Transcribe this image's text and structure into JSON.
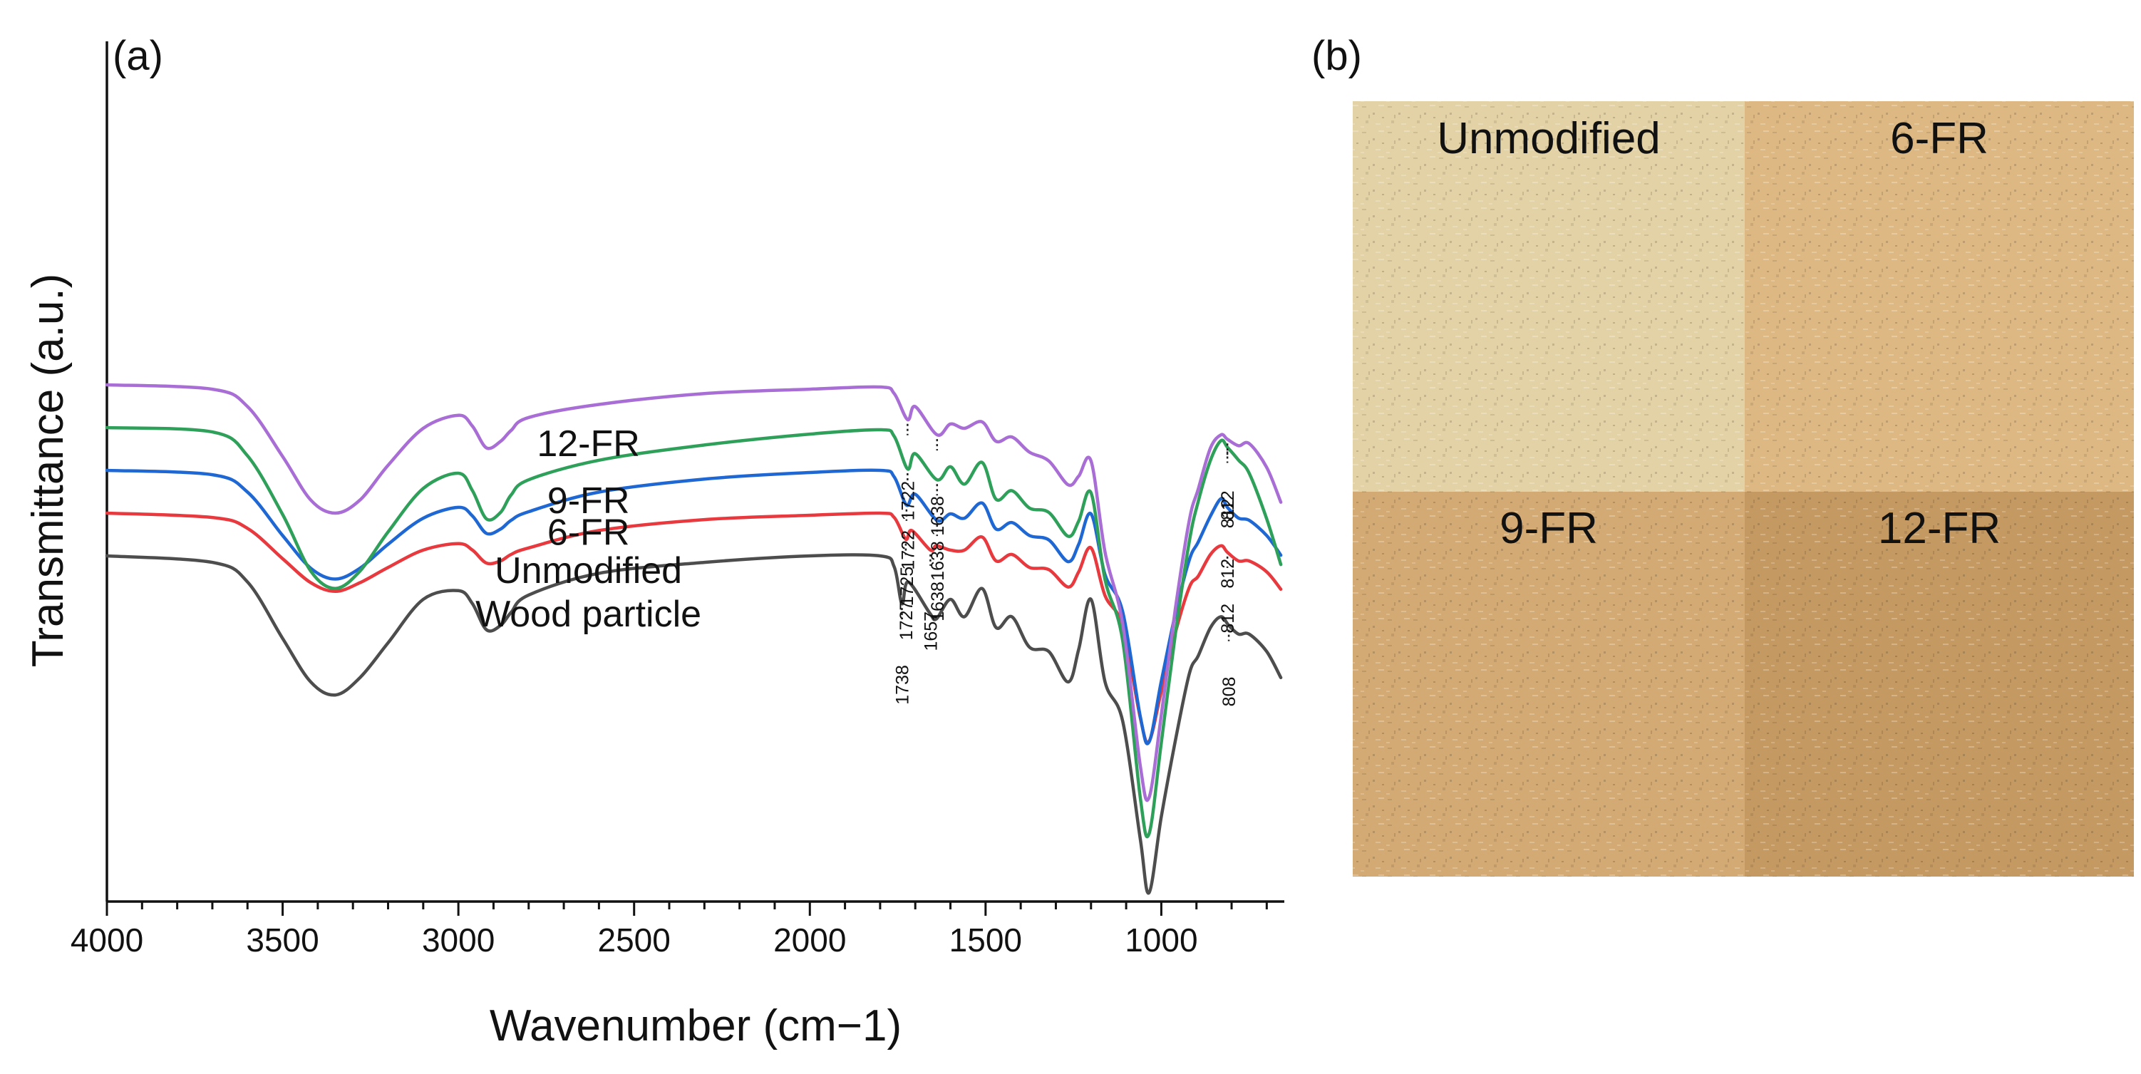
{
  "panel_a_label": "(a)",
  "panel_b_label": "(b)",
  "chart_data": {
    "type": "line",
    "title": "",
    "xlabel": "Wavenumber (cm−1)",
    "ylabel": "Transmittance (a.u.)",
    "xlim": [
      4000,
      650
    ],
    "x_ticks": [
      "4000",
      "3500",
      "3000",
      "2500",
      "2000",
      "1500",
      "1000"
    ],
    "series": [
      {
        "name": "Wood particle",
        "color": "#4d4d4d",
        "offset": 0,
        "points": [
          [
            4000,
            0
          ],
          [
            3700,
            -0.3
          ],
          [
            3600,
            -1.2
          ],
          [
            3500,
            -3.8
          ],
          [
            3420,
            -5.8
          ],
          [
            3350,
            -6.4
          ],
          [
            3280,
            -5.6
          ],
          [
            3200,
            -4
          ],
          [
            3100,
            -2
          ],
          [
            3000,
            -1.6
          ],
          [
            2960,
            -2.2
          ],
          [
            2920,
            -3.4
          ],
          [
            2880,
            -3.2
          ],
          [
            2850,
            -2.6
          ],
          [
            2800,
            -1.8
          ],
          [
            2600,
            -0.8
          ],
          [
            2300,
            -0.3
          ],
          [
            2000,
            0
          ],
          [
            1800,
            0
          ],
          [
            1760,
            -0.5
          ],
          [
            1738,
            -2.2
          ],
          [
            1720,
            -1.2
          ],
          [
            1660,
            -2.6
          ],
          [
            1640,
            -2.9
          ],
          [
            1600,
            -2
          ],
          [
            1560,
            -2.8
          ],
          [
            1510,
            -1.5
          ],
          [
            1470,
            -3.3
          ],
          [
            1425,
            -2.8
          ],
          [
            1375,
            -4.2
          ],
          [
            1320,
            -4.4
          ],
          [
            1265,
            -5.8
          ],
          [
            1235,
            -4.3
          ],
          [
            1200,
            -2
          ],
          [
            1160,
            -5.8
          ],
          [
            1110,
            -7.6
          ],
          [
            1060,
            -13
          ],
          [
            1035,
            -15.5
          ],
          [
            1000,
            -12
          ],
          [
            960,
            -8.5
          ],
          [
            920,
            -5.4
          ],
          [
            895,
            -4.6
          ],
          [
            860,
            -3.3
          ],
          [
            830,
            -2.8
          ],
          [
            808,
            -3.2
          ],
          [
            780,
            -3.6
          ],
          [
            750,
            -3.6
          ],
          [
            700,
            -4.4
          ],
          [
            660,
            -5.6
          ]
        ]
      },
      {
        "name": "Unmodified",
        "color": "#e8393e",
        "offset": 1.6,
        "points": [
          [
            4000,
            0
          ],
          [
            3700,
            -0.2
          ],
          [
            3600,
            -0.7
          ],
          [
            3500,
            -2.1
          ],
          [
            3420,
            -3.2
          ],
          [
            3350,
            -3.6
          ],
          [
            3280,
            -3.2
          ],
          [
            3200,
            -2.5
          ],
          [
            3100,
            -1.7
          ],
          [
            3000,
            -1.4
          ],
          [
            2960,
            -1.7
          ],
          [
            2920,
            -2.3
          ],
          [
            2880,
            -2.2
          ],
          [
            2850,
            -1.9
          ],
          [
            2800,
            -1.6
          ],
          [
            2600,
            -0.8
          ],
          [
            2300,
            -0.3
          ],
          [
            2000,
            -0.1
          ],
          [
            1800,
            0
          ],
          [
            1760,
            -0.2
          ],
          [
            1727,
            -1.2
          ],
          [
            1710,
            -0.8
          ],
          [
            1657,
            -1.7
          ],
          [
            1640,
            -1.5
          ],
          [
            1600,
            -1.7
          ],
          [
            1560,
            -1.7
          ],
          [
            1510,
            -1.1
          ],
          [
            1470,
            -2.2
          ],
          [
            1425,
            -1.9
          ],
          [
            1375,
            -2.5
          ],
          [
            1320,
            -2.6
          ],
          [
            1265,
            -3.4
          ],
          [
            1235,
            -2.7
          ],
          [
            1200,
            -1.6
          ],
          [
            1160,
            -3.8
          ],
          [
            1110,
            -5.2
          ],
          [
            1060,
            -9.4
          ],
          [
            1035,
            -10.5
          ],
          [
            1000,
            -8.2
          ],
          [
            960,
            -5.5
          ],
          [
            920,
            -3.4
          ],
          [
            895,
            -2.9
          ],
          [
            860,
            -1.9
          ],
          [
            830,
            -1.5
          ],
          [
            812,
            -1.8
          ],
          [
            780,
            -2.2
          ],
          [
            750,
            -2.2
          ],
          [
            700,
            -2.7
          ],
          [
            660,
            -3.5
          ]
        ]
      },
      {
        "name": "6-FR",
        "color": "#1f68d4",
        "offset": 3.2,
        "points": [
          [
            4000,
            0
          ],
          [
            3700,
            -0.2
          ],
          [
            3600,
            -1
          ],
          [
            3500,
            -3
          ],
          [
            3420,
            -4.5
          ],
          [
            3350,
            -5
          ],
          [
            3280,
            -4.5
          ],
          [
            3200,
            -3.4
          ],
          [
            3100,
            -2.2
          ],
          [
            3000,
            -1.7
          ],
          [
            2960,
            -2.1
          ],
          [
            2920,
            -2.9
          ],
          [
            2880,
            -2.7
          ],
          [
            2850,
            -2.3
          ],
          [
            2800,
            -1.9
          ],
          [
            2600,
            -1
          ],
          [
            2300,
            -0.4
          ],
          [
            2000,
            -0.1
          ],
          [
            1800,
            0
          ],
          [
            1760,
            -0.3
          ],
          [
            1725,
            -1.6
          ],
          [
            1700,
            -1.1
          ],
          [
            1638,
            -2.3
          ],
          [
            1600,
            -2
          ],
          [
            1560,
            -2.2
          ],
          [
            1510,
            -1.5
          ],
          [
            1470,
            -2.7
          ],
          [
            1425,
            -2.4
          ],
          [
            1375,
            -3
          ],
          [
            1320,
            -3.2
          ],
          [
            1265,
            -4.2
          ],
          [
            1235,
            -3.4
          ],
          [
            1200,
            -2
          ],
          [
            1160,
            -4.8
          ],
          [
            1110,
            -6.5
          ],
          [
            1060,
            -11.3
          ],
          [
            1035,
            -12.5
          ],
          [
            1000,
            -9.7
          ],
          [
            960,
            -6.6
          ],
          [
            920,
            -4.1
          ],
          [
            895,
            -3.3
          ],
          [
            860,
            -2.1
          ],
          [
            830,
            -1.3
          ],
          [
            812,
            -1.7
          ],
          [
            780,
            -2.2
          ],
          [
            750,
            -2.3
          ],
          [
            700,
            -3
          ],
          [
            660,
            -3.9
          ]
        ]
      },
      {
        "name": "9-FR",
        "color": "#2fa05a",
        "offset": 4.8,
        "points": [
          [
            4000,
            0
          ],
          [
            3700,
            -0.2
          ],
          [
            3600,
            -1.3
          ],
          [
            3500,
            -4
          ],
          [
            3420,
            -6.6
          ],
          [
            3350,
            -7.4
          ],
          [
            3280,
            -6.6
          ],
          [
            3200,
            -4.8
          ],
          [
            3100,
            -2.8
          ],
          [
            3000,
            -2.1
          ],
          [
            2960,
            -2.9
          ],
          [
            2920,
            -4.2
          ],
          [
            2880,
            -3.9
          ],
          [
            2850,
            -3.1
          ],
          [
            2800,
            -2.4
          ],
          [
            2600,
            -1.5
          ],
          [
            2300,
            -0.8
          ],
          [
            2000,
            -0.3
          ],
          [
            1800,
            -0.1
          ],
          [
            1760,
            -0.4
          ],
          [
            1722,
            -1.9
          ],
          [
            1700,
            -1.2
          ],
          [
            1638,
            -2.4
          ],
          [
            1600,
            -1.8
          ],
          [
            1560,
            -2.6
          ],
          [
            1510,
            -1.6
          ],
          [
            1470,
            -3.3
          ],
          [
            1425,
            -2.9
          ],
          [
            1375,
            -3.7
          ],
          [
            1320,
            -3.9
          ],
          [
            1265,
            -5
          ],
          [
            1235,
            -4.3
          ],
          [
            1200,
            -3
          ],
          [
            1160,
            -7
          ],
          [
            1110,
            -9.8
          ],
          [
            1060,
            -17
          ],
          [
            1035,
            -18.7
          ],
          [
            1000,
            -14.5
          ],
          [
            960,
            -9.5
          ],
          [
            920,
            -5.2
          ],
          [
            895,
            -3.4
          ],
          [
            860,
            -1.5
          ],
          [
            830,
            -0.6
          ],
          [
            812,
            -0.9
          ],
          [
            780,
            -1.5
          ],
          [
            750,
            -2.1
          ],
          [
            700,
            -4.2
          ],
          [
            660,
            -6.3
          ]
        ]
      },
      {
        "name": "12-FR",
        "color": "#a96ed6",
        "offset": 6.4,
        "points": [
          [
            4000,
            0
          ],
          [
            3700,
            -0.2
          ],
          [
            3600,
            -1
          ],
          [
            3500,
            -3.3
          ],
          [
            3420,
            -5.3
          ],
          [
            3350,
            -5.9
          ],
          [
            3280,
            -5.3
          ],
          [
            3200,
            -3.7
          ],
          [
            3100,
            -2
          ],
          [
            3000,
            -1.4
          ],
          [
            2960,
            -1.9
          ],
          [
            2920,
            -2.9
          ],
          [
            2880,
            -2.6
          ],
          [
            2850,
            -2.1
          ],
          [
            2800,
            -1.5
          ],
          [
            2600,
            -0.9
          ],
          [
            2300,
            -0.4
          ],
          [
            2000,
            -0.2
          ],
          [
            1800,
            -0.1
          ],
          [
            1760,
            -0.4
          ],
          [
            1722,
            -1.6
          ],
          [
            1700,
            -1
          ],
          [
            1638,
            -2.3
          ],
          [
            1600,
            -1.8
          ],
          [
            1560,
            -2
          ],
          [
            1510,
            -1.7
          ],
          [
            1470,
            -2.6
          ],
          [
            1425,
            -2.4
          ],
          [
            1375,
            -3.1
          ],
          [
            1320,
            -3.5
          ],
          [
            1265,
            -4.6
          ],
          [
            1235,
            -4.2
          ],
          [
            1200,
            -3.5
          ],
          [
            1160,
            -7.7
          ],
          [
            1110,
            -11
          ],
          [
            1060,
            -17.5
          ],
          [
            1035,
            -19
          ],
          [
            1000,
            -15.2
          ],
          [
            960,
            -10.3
          ],
          [
            920,
            -6.2
          ],
          [
            895,
            -4.8
          ],
          [
            860,
            -2.9
          ],
          [
            830,
            -2.3
          ],
          [
            812,
            -2.5
          ],
          [
            780,
            -2.8
          ],
          [
            750,
            -2.7
          ],
          [
            700,
            -3.8
          ],
          [
            660,
            -5.4
          ]
        ]
      }
    ],
    "series_labels": [
      {
        "text": "12-FR",
        "series": "12-FR",
        "x": 2630
      },
      {
        "text": "9-FR",
        "series": "9-FR",
        "x": 2630
      },
      {
        "text": "6-FR",
        "series": "6-FR",
        "x": 2630
      },
      {
        "text": "Unmodified",
        "series": "Unmodified",
        "x": 2630
      },
      {
        "text": "Wood particle",
        "series": "Wood particle",
        "x": 2630
      }
    ],
    "peak_annotations": [
      {
        "series": "12-FR",
        "x": 1722,
        "text": "1722"
      },
      {
        "series": "12-FR",
        "x": 1638,
        "text": "1638"
      },
      {
        "series": "12-FR",
        "x": 812,
        "text": "812"
      },
      {
        "series": "9-FR",
        "x": 1722,
        "text": "1722"
      },
      {
        "series": "9-FR",
        "x": 1638,
        "text": "1638"
      },
      {
        "series": "9-FR",
        "x": 812,
        "text": "812"
      },
      {
        "series": "6-FR",
        "x": 1725,
        "text": "1725"
      },
      {
        "series": "6-FR",
        "x": 1638,
        "text": "1638"
      },
      {
        "series": "6-FR",
        "x": 812,
        "text": "812"
      },
      {
        "series": "Unmodified",
        "x": 1727,
        "text": "1727"
      },
      {
        "series": "Unmodified",
        "x": 1657,
        "text": "1657"
      },
      {
        "series": "Unmodified",
        "x": 812,
        "text": "812"
      },
      {
        "series": "Wood particle",
        "x": 1738,
        "text": "1738"
      },
      {
        "series": "Wood particle",
        "x": 808,
        "text": "808"
      }
    ]
  },
  "photos": {
    "tiles": [
      {
        "label": "Unmodified",
        "color": "#e3d2a5"
      },
      {
        "label": "6-FR",
        "color": "#ddb883"
      },
      {
        "label": "9-FR",
        "color": "#d3aa73"
      },
      {
        "label": "12-FR",
        "color": "#c59a62"
      }
    ]
  }
}
